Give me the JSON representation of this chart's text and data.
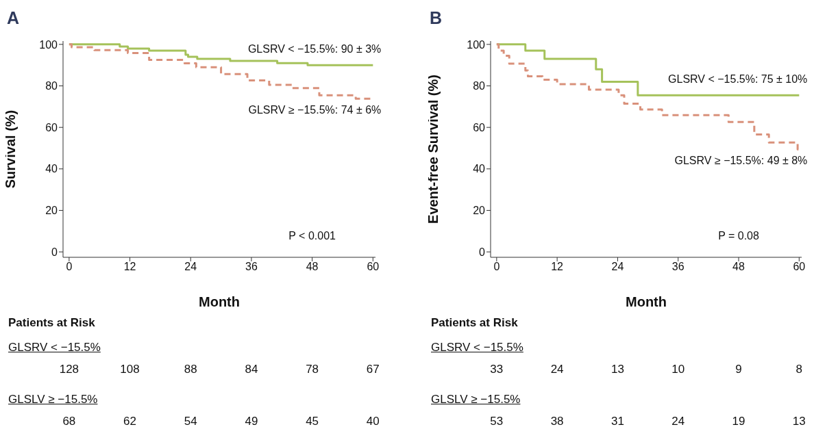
{
  "chart_data": [
    {
      "type": "step",
      "title": "A",
      "xlabel": "Month",
      "ylabel": "Survival (%)",
      "xlim": [
        -1.2,
        60.5
      ],
      "ylim": [
        -2.6,
        101.6
      ],
      "xticks": [
        0,
        12,
        24,
        36,
        48,
        60
      ],
      "yticks": [
        0,
        20,
        40,
        60,
        80,
        100
      ],
      "marker": "none",
      "series": [
        {
          "color": "#a5c25a",
          "line_style": "solid",
          "x": [
            0,
            10,
            11.6,
            15.8,
            23,
            23.5,
            25.3,
            31.8,
            41.1,
            47.1,
            60
          ],
          "values": [
            100,
            99,
            98,
            97,
            95,
            94,
            93,
            92,
            91,
            90,
            90
          ]
        },
        {
          "color": "#d9917b",
          "line_style": "dashed",
          "x": [
            0,
            0.5,
            5,
            11.6,
            15.8,
            22.8,
            25.1,
            30,
            35.2,
            39.5,
            44,
            49.4,
            56.6,
            60
          ],
          "values": [
            100,
            98.6,
            97.2,
            95.8,
            92.5,
            90.9,
            89,
            85.7,
            82.6,
            80.5,
            78.9,
            75.5,
            73.8,
            73.8
          ]
        }
      ],
      "annotations": [
        "GLSRV < −15.5%: 90 ± 3%",
        "GLSRV ≥ −15.5%: 74 ± 6%",
        "P < 0.001",
        "Patients at Risk",
        "GLSRV < −15.5%",
        "128",
        "108",
        "88",
        "84",
        "78",
        "67",
        "GLSLV ≥ −15.5%",
        "68",
        "62",
        "54",
        "49",
        "45",
        "40"
      ]
    },
    {
      "type": "step",
      "title": "B",
      "xlabel": "Month",
      "ylabel": "Event-free Survival (%)",
      "xlim": [
        -1.2,
        60.5
      ],
      "ylim": [
        -2.6,
        101.6
      ],
      "xticks": [
        0,
        12,
        24,
        36,
        48,
        60
      ],
      "yticks": [
        0,
        20,
        40,
        60,
        80,
        100
      ],
      "marker": "none",
      "series": [
        {
          "color": "#a5c25a",
          "line_style": "solid",
          "x": [
            0,
            5.7,
            9.5,
            19.7,
            20.9,
            28,
            60
          ],
          "values": [
            100,
            97,
            93,
            88,
            82,
            75.5,
            75.5
          ]
        },
        {
          "color": "#d9917b",
          "line_style": "dashed",
          "x": [
            0,
            0.4,
            1.4,
            2.5,
            5.7,
            6.2,
            9.1,
            12,
            18.3,
            24.2,
            25.3,
            28.5,
            32.8,
            46,
            51.1,
            54,
            59.7,
            60
          ],
          "values": [
            100,
            97,
            94.5,
            90.7,
            87.4,
            84.6,
            83,
            80.8,
            78.2,
            75.5,
            71.4,
            68.6,
            65.9,
            62.6,
            56.6,
            52.7,
            49.4,
            49.4
          ]
        }
      ],
      "annotations": [
        "GLSRV < −15.5%: 75 ± 10%",
        "GLSRV ≥ −15.5%: 49 ± 8%",
        "P = 0.08",
        "Patients at Risk",
        "GLSRV < −15.5%",
        "33",
        "24",
        "13",
        "10",
        "9",
        "8",
        "GLSLV ≥ −15.5%",
        "53",
        "38",
        "31",
        "24",
        "19",
        "13"
      ]
    }
  ]
}
